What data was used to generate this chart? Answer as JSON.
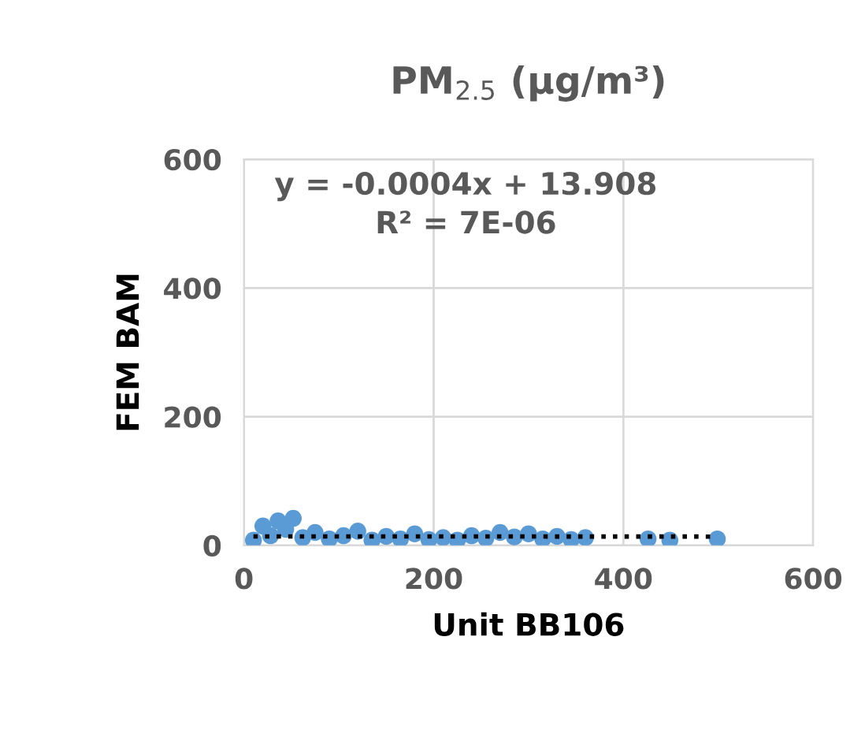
{
  "chart_data": {
    "type": "scatter",
    "title": "PM$_{2.5}$ (µg/m³)",
    "xlabel": "Unit BB106",
    "ylabel": "FEM BAM",
    "annotations": [
      "y = -0.0004x + 13.908",
      "R² = 7E-06"
    ],
    "xlim": [
      0,
      600
    ],
    "xticks": [
      0,
      200,
      400,
      600
    ],
    "ylim": [
      0,
      600
    ],
    "yticks": [
      0,
      200,
      400,
      600
    ],
    "grid": true,
    "series": [
      {
        "color": "#5b9bd5",
        "marker": "circle",
        "x": [
          10,
          20,
          28,
          36,
          44,
          52,
          62,
          75,
          90,
          105,
          120,
          135,
          150,
          165,
          180,
          195,
          210,
          225,
          240,
          255,
          270,
          285,
          300,
          315,
          330,
          345,
          360,
          426,
          449,
          499
        ],
        "values": [
          8,
          30,
          15,
          38,
          25,
          42,
          12,
          20,
          10,
          15,
          22,
          8,
          14,
          10,
          18,
          9,
          12,
          8,
          15,
          11,
          20,
          13,
          18,
          10,
          14,
          9,
          12,
          10,
          8,
          10
        ]
      },
      {
        "type": "line",
        "color": "#000000",
        "marker": "none",
        "line_style": "dotted",
        "x": [
          10,
          499
        ],
        "values": [
          13.9,
          13.7
        ]
      }
    ]
  }
}
